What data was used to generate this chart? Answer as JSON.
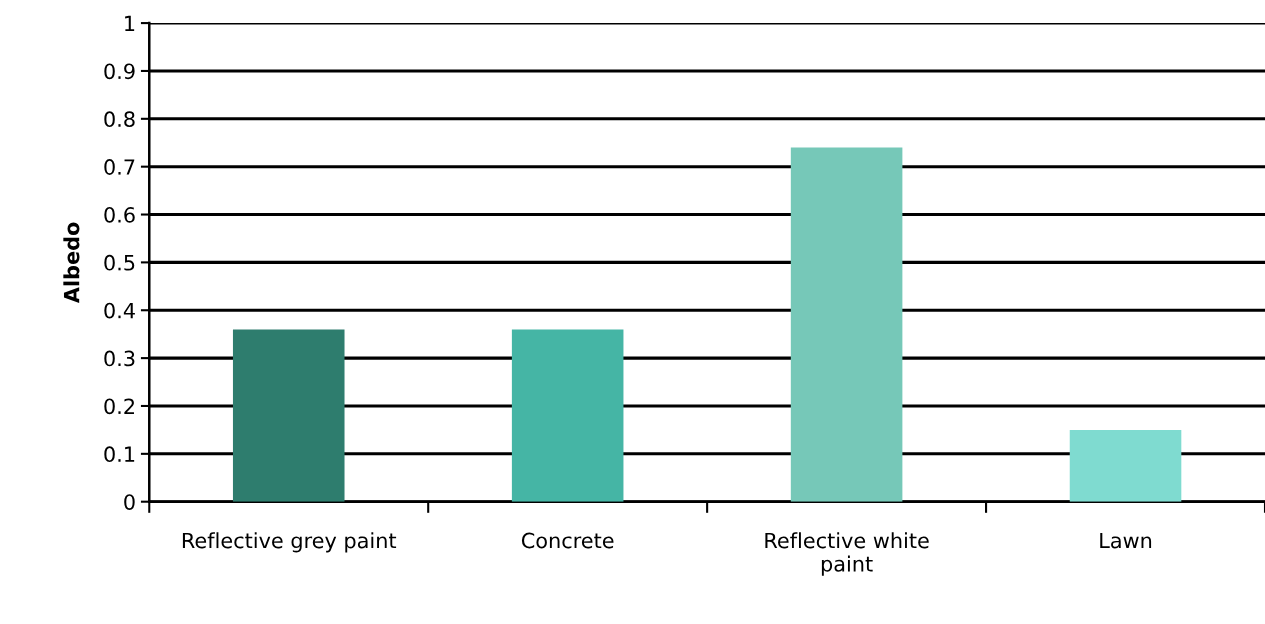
{
  "chart_data": {
    "type": "bar",
    "ylabel": "Albedo",
    "categories": [
      "Reflective grey paint",
      "Concrete",
      "Reflective white\npaint",
      "Lawn"
    ],
    "values": [
      0.36,
      0.36,
      0.74,
      0.15
    ],
    "colors": [
      "#2e7d6e",
      "#45b5a5",
      "#76c8b8",
      "#7fdbd0"
    ],
    "ylim": [
      0,
      1
    ],
    "yticks": [
      0,
      0.1,
      0.2,
      0.3,
      0.4,
      0.5,
      0.6,
      0.7,
      0.8,
      0.9,
      1
    ],
    "grid": "y",
    "legend": false
  }
}
